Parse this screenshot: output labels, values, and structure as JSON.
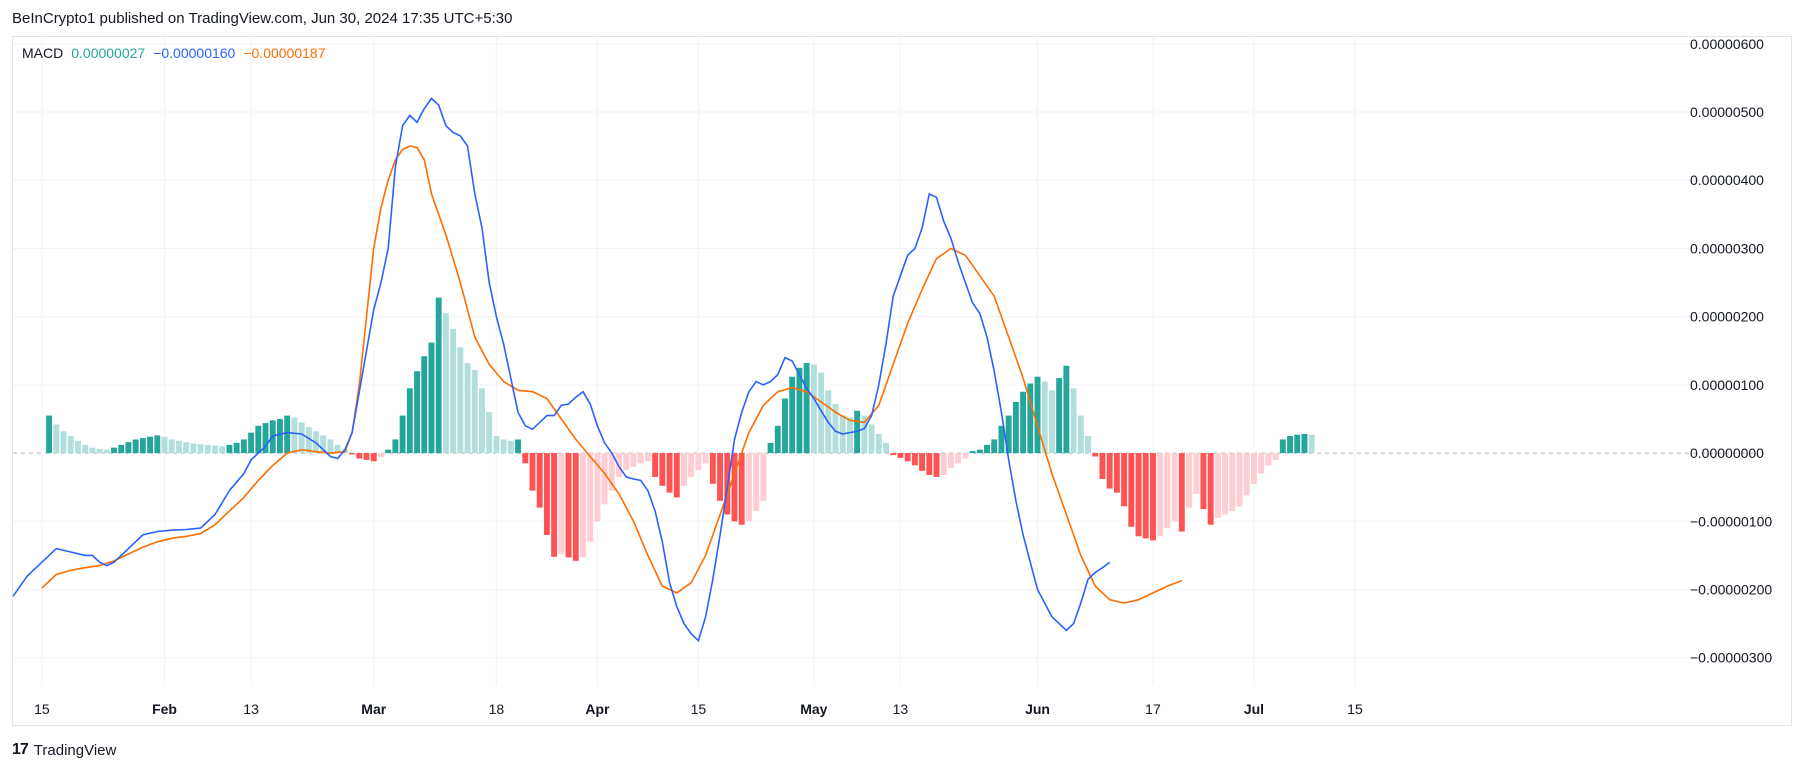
{
  "header": {
    "published": "BeInCrypto1 published on TradingView.com, Jun 30, 2024 17:35 UTC+5:30"
  },
  "legend": {
    "name": "MACD",
    "hist": "0.00000027",
    "macd": "−0.00000160",
    "signal": "−0.00000187"
  },
  "footer": {
    "brand": "TradingView",
    "logo_text": "17"
  },
  "colors": {
    "macd": "#2962ff",
    "signal": "#ff6d00",
    "hist_up_strong": "#26a69a",
    "hist_up_weak": "#b2dfdb",
    "hist_down_strong": "#ff5252",
    "hist_down_weak": "#ffcdd2",
    "legend_hist": "#26a69a"
  },
  "chart_data": {
    "type": "line+bar",
    "title": "MACD",
    "ylim": [
      -3.4e-06,
      6.1e-06
    ],
    "y_ticks": [
      {
        "v": 6e-06,
        "label": "0.00000600"
      },
      {
        "v": 5e-06,
        "label": "0.00000500"
      },
      {
        "v": 4e-06,
        "label": "0.00000400"
      },
      {
        "v": 3e-06,
        "label": "0.00000300"
      },
      {
        "v": 2e-06,
        "label": "0.00000200"
      },
      {
        "v": 1e-06,
        "label": "0.00000100"
      },
      {
        "v": 0,
        "label": "0.00000000"
      },
      {
        "v": -1e-06,
        "label": "−0.00000100"
      },
      {
        "v": -2e-06,
        "label": "−0.00000200"
      },
      {
        "v": -3e-06,
        "label": "−0.00000300"
      }
    ],
    "x_range_days": [
      -4,
      224
    ],
    "x_ticks": [
      {
        "d": 0,
        "label": "15",
        "bold": false
      },
      {
        "d": 17,
        "label": "Feb",
        "bold": true
      },
      {
        "d": 29,
        "label": "13",
        "bold": false
      },
      {
        "d": 46,
        "label": "Mar",
        "bold": true
      },
      {
        "d": 63,
        "label": "18",
        "bold": false
      },
      {
        "d": 77,
        "label": "Apr",
        "bold": true
      },
      {
        "d": 91,
        "label": "15",
        "bold": false
      },
      {
        "d": 107,
        "label": "May",
        "bold": true
      },
      {
        "d": 119,
        "label": "13",
        "bold": false
      },
      {
        "d": 138,
        "label": "Jun",
        "bold": true
      },
      {
        "d": 154,
        "label": "17",
        "bold": false
      },
      {
        "d": 168,
        "label": "Jul",
        "bold": true
      },
      {
        "d": 182,
        "label": "15",
        "bold": false
      }
    ],
    "macd_line": [
      [
        -4,
        -2.1
      ],
      [
        -2,
        -1.8
      ],
      [
        0,
        -1.6
      ],
      [
        2,
        -1.4
      ],
      [
        4,
        -1.45
      ],
      [
        6,
        -1.5
      ],
      [
        7,
        -1.5
      ],
      [
        8,
        -1.6
      ],
      [
        9,
        -1.65
      ],
      [
        10,
        -1.6
      ],
      [
        12,
        -1.4
      ],
      [
        14,
        -1.2
      ],
      [
        16,
        -1.15
      ],
      [
        18,
        -1.13
      ],
      [
        20,
        -1.12
      ],
      [
        22,
        -1.1
      ],
      [
        24,
        -0.9
      ],
      [
        26,
        -0.55
      ],
      [
        28,
        -0.3
      ],
      [
        29,
        -0.1
      ],
      [
        31,
        0.1
      ],
      [
        32,
        0.25
      ],
      [
        34,
        0.3
      ],
      [
        36,
        0.28
      ],
      [
        38,
        0.15
      ],
      [
        40,
        -0.05
      ],
      [
        41,
        -0.08
      ],
      [
        42,
        0.05
      ],
      [
        43,
        0.3
      ],
      [
        44,
        0.9
      ],
      [
        45,
        1.5
      ],
      [
        46,
        2.1
      ],
      [
        47,
        2.5
      ],
      [
        48,
        3.0
      ],
      [
        49,
        4.2
      ],
      [
        50,
        4.8
      ],
      [
        51,
        4.95
      ],
      [
        52,
        4.85
      ],
      [
        53,
        5.05
      ],
      [
        54,
        5.2
      ],
      [
        55,
        5.1
      ],
      [
        56,
        4.8
      ],
      [
        57,
        4.7
      ],
      [
        58,
        4.65
      ],
      [
        59,
        4.5
      ],
      [
        60,
        3.8
      ],
      [
        61,
        3.3
      ],
      [
        62,
        2.5
      ],
      [
        63,
        2.0
      ],
      [
        64,
        1.6
      ],
      [
        65,
        1.1
      ],
      [
        66,
        0.6
      ],
      [
        67,
        0.4
      ],
      [
        68,
        0.35
      ],
      [
        69,
        0.45
      ],
      [
        70,
        0.55
      ],
      [
        71,
        0.55
      ],
      [
        72,
        0.7
      ],
      [
        73,
        0.72
      ],
      [
        74,
        0.82
      ],
      [
        75,
        0.9
      ],
      [
        76,
        0.72
      ],
      [
        77,
        0.4
      ],
      [
        78,
        0.15
      ],
      [
        79,
        0.0
      ],
      [
        80,
        -0.2
      ],
      [
        81,
        -0.35
      ],
      [
        82,
        -0.38
      ],
      [
        83,
        -0.4
      ],
      [
        84,
        -0.55
      ],
      [
        85,
        -0.85
      ],
      [
        86,
        -1.3
      ],
      [
        87,
        -1.9
      ],
      [
        88,
        -2.25
      ],
      [
        89,
        -2.5
      ],
      [
        90,
        -2.65
      ],
      [
        91,
        -2.75
      ],
      [
        92,
        -2.4
      ],
      [
        93,
        -1.85
      ],
      [
        94,
        -1.2
      ],
      [
        95,
        -0.5
      ],
      [
        96,
        0.2
      ],
      [
        97,
        0.6
      ],
      [
        98,
        0.9
      ],
      [
        99,
        1.05
      ],
      [
        100,
        1.0
      ],
      [
        101,
        1.05
      ],
      [
        102,
        1.15
      ],
      [
        103,
        1.4
      ],
      [
        104,
        1.35
      ],
      [
        105,
        1.15
      ],
      [
        106,
        0.95
      ],
      [
        107,
        0.8
      ],
      [
        108,
        0.62
      ],
      [
        109,
        0.45
      ],
      [
        110,
        0.32
      ],
      [
        111,
        0.28
      ],
      [
        112,
        0.3
      ],
      [
        113,
        0.32
      ],
      [
        114,
        0.36
      ],
      [
        115,
        0.55
      ],
      [
        116,
        1.0
      ],
      [
        117,
        1.6
      ],
      [
        118,
        2.3
      ],
      [
        119,
        2.6
      ],
      [
        120,
        2.9
      ],
      [
        121,
        3.0
      ],
      [
        122,
        3.3
      ],
      [
        123,
        3.8
      ],
      [
        124,
        3.75
      ],
      [
        125,
        3.4
      ],
      [
        126,
        3.15
      ],
      [
        127,
        2.8
      ],
      [
        128,
        2.5
      ],
      [
        129,
        2.2
      ],
      [
        130,
        2.05
      ],
      [
        131,
        1.7
      ],
      [
        132,
        1.2
      ],
      [
        133,
        0.6
      ],
      [
        134,
        -0.1
      ],
      [
        135,
        -0.7
      ],
      [
        136,
        -1.2
      ],
      [
        137,
        -1.6
      ],
      [
        138,
        -2.0
      ],
      [
        139,
        -2.2
      ],
      [
        140,
        -2.4
      ],
      [
        141,
        -2.5
      ],
      [
        142,
        -2.6
      ],
      [
        143,
        -2.5
      ],
      [
        144,
        -2.2
      ],
      [
        145,
        -1.85
      ],
      [
        146,
        -1.75
      ],
      [
        147,
        -1.68
      ],
      [
        148,
        -1.6
      ]
    ],
    "signal_line": [
      [
        0,
        -1.98
      ],
      [
        2,
        -1.78
      ],
      [
        4,
        -1.72
      ],
      [
        6,
        -1.68
      ],
      [
        8,
        -1.65
      ],
      [
        10,
        -1.58
      ],
      [
        12,
        -1.48
      ],
      [
        14,
        -1.38
      ],
      [
        16,
        -1.3
      ],
      [
        18,
        -1.25
      ],
      [
        20,
        -1.22
      ],
      [
        22,
        -1.18
      ],
      [
        24,
        -1.05
      ],
      [
        26,
        -0.85
      ],
      [
        28,
        -0.65
      ],
      [
        30,
        -0.4
      ],
      [
        32,
        -0.18
      ],
      [
        34,
        0.0
      ],
      [
        36,
        0.05
      ],
      [
        38,
        0.02
      ],
      [
        40,
        0.0
      ],
      [
        42,
        0.02
      ],
      [
        43,
        0.3
      ],
      [
        44,
        1.0
      ],
      [
        45,
        2.0
      ],
      [
        46,
        3.0
      ],
      [
        47,
        3.6
      ],
      [
        48,
        4.0
      ],
      [
        49,
        4.3
      ],
      [
        50,
        4.45
      ],
      [
        51,
        4.5
      ],
      [
        52,
        4.48
      ],
      [
        53,
        4.3
      ],
      [
        54,
        3.8
      ],
      [
        56,
        3.2
      ],
      [
        58,
        2.5
      ],
      [
        60,
        1.7
      ],
      [
        62,
        1.3
      ],
      [
        64,
        1.05
      ],
      [
        66,
        0.92
      ],
      [
        68,
        0.9
      ],
      [
        70,
        0.8
      ],
      [
        72,
        0.5
      ],
      [
        74,
        0.2
      ],
      [
        76,
        -0.05
      ],
      [
        78,
        -0.3
      ],
      [
        80,
        -0.6
      ],
      [
        82,
        -1.0
      ],
      [
        84,
        -1.5
      ],
      [
        86,
        -1.95
      ],
      [
        88,
        -2.05
      ],
      [
        90,
        -1.9
      ],
      [
        92,
        -1.5
      ],
      [
        94,
        -0.9
      ],
      [
        96,
        -0.3
      ],
      [
        98,
        0.3
      ],
      [
        100,
        0.7
      ],
      [
        102,
        0.9
      ],
      [
        104,
        0.96
      ],
      [
        106,
        0.9
      ],
      [
        108,
        0.75
      ],
      [
        110,
        0.6
      ],
      [
        112,
        0.48
      ],
      [
        114,
        0.45
      ],
      [
        116,
        0.7
      ],
      [
        118,
        1.3
      ],
      [
        120,
        1.9
      ],
      [
        122,
        2.4
      ],
      [
        124,
        2.85
      ],
      [
        126,
        3.0
      ],
      [
        128,
        2.9
      ],
      [
        130,
        2.6
      ],
      [
        132,
        2.3
      ],
      [
        134,
        1.7
      ],
      [
        136,
        1.1
      ],
      [
        138,
        0.4
      ],
      [
        140,
        -0.3
      ],
      [
        142,
        -0.9
      ],
      [
        144,
        -1.5
      ],
      [
        146,
        -1.95
      ],
      [
        148,
        -2.15
      ],
      [
        150,
        -2.2
      ],
      [
        152,
        -2.15
      ],
      [
        154,
        -2.05
      ],
      [
        156,
        -1.95
      ],
      [
        158,
        -1.87
      ]
    ],
    "histogram": [
      0.55,
      0.42,
      0.32,
      0.25,
      0.18,
      0.12,
      0.08,
      0.06,
      0.05,
      0.08,
      0.12,
      0.16,
      0.2,
      0.22,
      0.24,
      0.26,
      0.24,
      0.2,
      0.18,
      0.16,
      0.14,
      0.13,
      0.12,
      0.11,
      0.1,
      0.12,
      0.15,
      0.2,
      0.3,
      0.4,
      0.44,
      0.48,
      0.5,
      0.55,
      0.52,
      0.45,
      0.38,
      0.32,
      0.26,
      0.2,
      0.12,
      0.06,
      -0.02,
      -0.08,
      -0.1,
      -0.12,
      -0.06,
      0.05,
      0.2,
      0.55,
      0.95,
      1.2,
      1.42,
      1.62,
      2.28,
      2.05,
      1.82,
      1.55,
      1.32,
      1.22,
      0.95,
      0.6,
      0.25,
      0.2,
      0.18,
      0.2,
      -0.15,
      -0.55,
      -0.8,
      -1.2,
      -1.52,
      -1.48,
      -1.53,
      -1.58,
      -1.53,
      -1.3,
      -1.0,
      -0.75,
      -0.55,
      -0.35,
      -0.25,
      -0.2,
      -0.15,
      -0.12,
      -0.35,
      -0.48,
      -0.58,
      -0.65,
      -0.48,
      -0.35,
      -0.25,
      -0.15,
      -0.45,
      -0.7,
      -0.9,
      -1.0,
      -1.05,
      -1.0,
      -0.85,
      -0.7,
      0.15,
      0.4,
      0.8,
      1.12,
      1.25,
      1.32,
      1.3,
      1.18,
      0.92,
      0.72,
      0.55,
      0.52,
      0.62,
      0.55,
      0.42,
      0.28,
      0.15,
      -0.03,
      -0.07,
      -0.12,
      -0.18,
      -0.26,
      -0.32,
      -0.35,
      -0.32,
      -0.22,
      -0.15,
      -0.08,
      0.03,
      0.05,
      0.12,
      0.2,
      0.4,
      0.55,
      0.75,
      0.9,
      1.02,
      1.12,
      1.05,
      0.92,
      1.1,
      1.28,
      0.95,
      0.55,
      0.25,
      -0.05,
      -0.38,
      -0.52,
      -0.58,
      -0.78,
      -1.08,
      -1.22,
      -1.25,
      -1.28,
      -1.22,
      -1.1,
      -1.0,
      -1.15,
      -0.8,
      -0.6,
      -0.82,
      -1.05,
      -0.95,
      -0.9,
      -0.85,
      -0.78,
      -0.62,
      -0.45,
      -0.3,
      -0.18,
      -0.1,
      0.2,
      0.25,
      0.27,
      0.28,
      0.27
    ]
  }
}
